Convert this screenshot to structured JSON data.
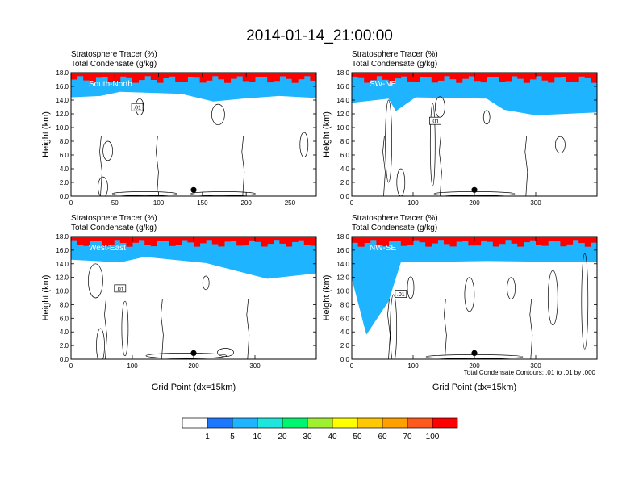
{
  "figure": {
    "title": "2014-01-14_21:00:00",
    "footnote": "Total Condensate Contours: .01 to .01 by .000"
  },
  "colors": {
    "levels": [
      "#ffffff",
      "#1e78ff",
      "#1eb4ff",
      "#1ee6dc",
      "#00f56e",
      "#a0f032",
      "#ffff00",
      "#ffc800",
      "#ffa000",
      "#ff5a1e",
      "#ff0000"
    ],
    "contour": "#000000"
  },
  "chart_data": [
    {
      "type": "contour",
      "section": "South-North",
      "title_left_1": "Stratosphere Tracer   (%)",
      "title_left_2": "Total Condensate   (g/kg)",
      "ylabel": "Height (km)",
      "xlabel": "",
      "xlim": [
        0,
        280
      ],
      "ylim": [
        0,
        18
      ],
      "xticks": [
        "0",
        "50",
        "100",
        "150",
        "200",
        "250"
      ],
      "xtick_values": [
        0,
        50,
        100,
        150,
        200,
        250
      ],
      "yticks": [
        "0.0",
        "2.0",
        "4.0",
        "6.0",
        "8.0",
        "10.0",
        "12.0",
        "14.0",
        "16.0",
        "18.0"
      ],
      "contour_label": ".01",
      "marker_x": 140
    },
    {
      "type": "contour",
      "section": "SW-NE",
      "title_left_1": "Stratosphere Tracer   (%)",
      "title_left_2": "Total Condensate   (g/kg)",
      "ylabel": "Height (km)",
      "xlabel": "",
      "xlim": [
        0,
        400
      ],
      "ylim": [
        0,
        18
      ],
      "xticks": [
        "0",
        "100",
        "200",
        "300"
      ],
      "xtick_values": [
        0,
        100,
        200,
        300
      ],
      "yticks": [
        "0.0",
        "2.0",
        "4.0",
        "6.0",
        "8.0",
        "10.0",
        "12.0",
        "14.0",
        "16.0",
        "18.0"
      ],
      "contour_label": ".01",
      "marker_x": 200
    },
    {
      "type": "contour",
      "section": "West-East",
      "title_left_1": "Stratosphere Tracer   (%)",
      "title_left_2": "Total Condensate   (g/kg)",
      "ylabel": "Height (km)",
      "xlabel": "Grid Point (dx=15km)",
      "xlim": [
        0,
        400
      ],
      "ylim": [
        0,
        18
      ],
      "xticks": [
        "0",
        "100",
        "200",
        "300"
      ],
      "xtick_values": [
        0,
        100,
        200,
        300
      ],
      "yticks": [
        "0.0",
        "2.0",
        "4.0",
        "6.0",
        "8.0",
        "10.0",
        "12.0",
        "14.0",
        "16.0",
        "18.0"
      ],
      "contour_label": ".01",
      "marker_x": 200
    },
    {
      "type": "contour",
      "section": "NW-SE",
      "title_left_1": "Stratosphere Tracer   (%)",
      "title_left_2": "Total Condensate   (g/kg)",
      "ylabel": "Height (km)",
      "xlabel": "Grid Point (dx=15km)",
      "xlim": [
        0,
        400
      ],
      "ylim": [
        0,
        18
      ],
      "xticks": [
        "0",
        "100",
        "200",
        "300"
      ],
      "xtick_values": [
        0,
        100,
        200,
        300
      ],
      "yticks": [
        "0.0",
        "2.0",
        "4.0",
        "6.0",
        "8.0",
        "10.0",
        "12.0",
        "14.0",
        "16.0",
        "18.0"
      ],
      "contour_label": ".01",
      "marker_x": 200
    }
  ],
  "colorbar": {
    "labels": [
      "1",
      "5",
      "10",
      "20",
      "30",
      "40",
      "50",
      "60",
      "70",
      "100"
    ]
  }
}
